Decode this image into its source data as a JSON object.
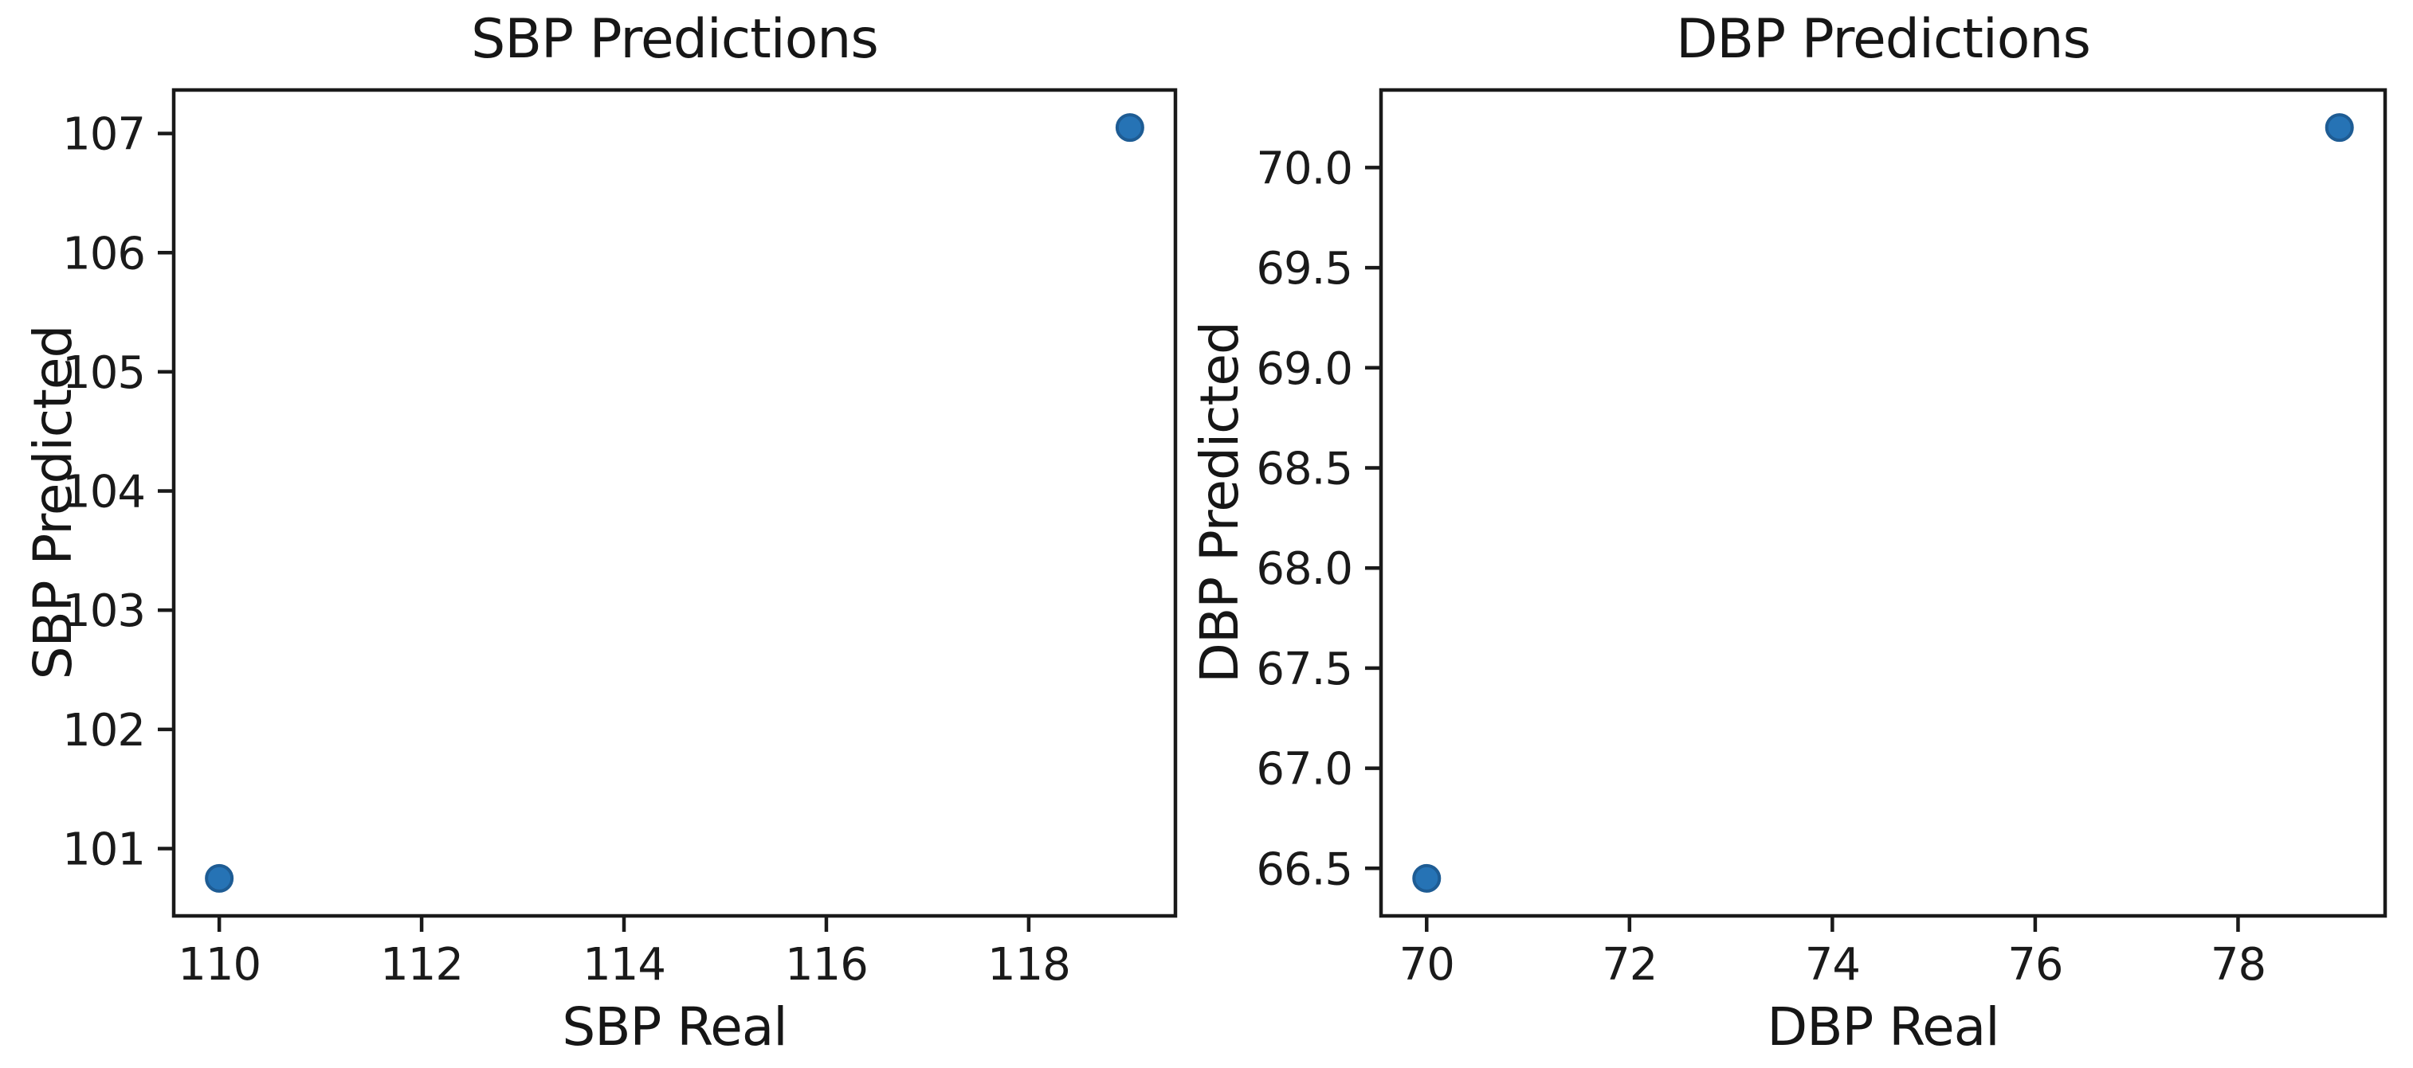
{
  "figure": {
    "background": "#ffffff",
    "axis_color": "#1a1a1a",
    "text_color": "#161616"
  },
  "chart_data": [
    {
      "type": "scatter",
      "title": "SBP Predictions",
      "xlabel": "SBP Real",
      "ylabel": "SBP Predicted",
      "points": {
        "x": [
          110,
          119
        ],
        "y": [
          100.75,
          107.05
        ]
      },
      "xlim": [
        109.55,
        119.45
      ],
      "ylim": [
        100.435,
        107.365
      ],
      "xticks": {
        "values": [
          110,
          112,
          114,
          116,
          118
        ],
        "labels": [
          "110",
          "112",
          "114",
          "116",
          "118"
        ]
      },
      "yticks": {
        "values": [
          101,
          102,
          103,
          104,
          105,
          106,
          107
        ],
        "labels": [
          "101",
          "102",
          "103",
          "104",
          "105",
          "106",
          "107"
        ]
      },
      "marker": {
        "color": "#2673b5",
        "edge_color": "#1e5c94",
        "radius": 16
      },
      "grid": false,
      "legend": null
    },
    {
      "type": "scatter",
      "title": "DBP Predictions",
      "xlabel": "DBP Real",
      "ylabel": "DBP Predicted",
      "points": {
        "x": [
          70,
          79
        ],
        "y": [
          66.45,
          70.2
        ]
      },
      "xlim": [
        69.55,
        79.45
      ],
      "ylim": [
        66.2625,
        70.3875
      ],
      "xticks": {
        "values": [
          70,
          72,
          74,
          76,
          78
        ],
        "labels": [
          "70",
          "72",
          "74",
          "76",
          "78"
        ]
      },
      "yticks": {
        "values": [
          66.5,
          67.0,
          67.5,
          68.0,
          68.5,
          69.0,
          69.5,
          70.0
        ],
        "labels": [
          "66.5",
          "67.0",
          "67.5",
          "68.0",
          "68.5",
          "69.0",
          "69.5",
          "70.0"
        ]
      },
      "marker": {
        "color": "#2673b5",
        "edge_color": "#1e5c94",
        "radius": 16
      },
      "grid": false,
      "legend": null
    }
  ]
}
